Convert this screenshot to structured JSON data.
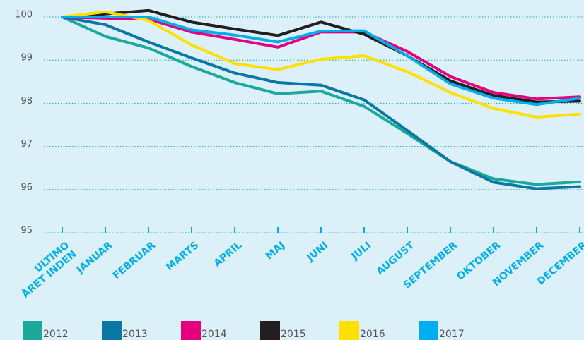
{
  "chart_data": {
    "type": "line",
    "categories": [
      "ULTIMO ÅRET INDEN",
      "JANUAR",
      "FEBRUAR",
      "MARTS",
      "APRIL",
      "MAJ",
      "JUNI",
      "JULI",
      "AUGUST",
      "SEPTEMBER",
      "OKTOBER",
      "NOVEMBER",
      "DECEMBER"
    ],
    "series": [
      {
        "name": "2012",
        "color": "#1aa99a",
        "values": [
          100,
          99.55,
          99.28,
          98.85,
          98.48,
          98.22,
          98.28,
          97.93,
          97.3,
          96.65,
          96.25,
          96.12,
          96.18
        ]
      },
      {
        "name": "2013",
        "color": "#0a77a4",
        "values": [
          100,
          99.82,
          99.42,
          99.05,
          98.7,
          98.48,
          98.42,
          98.08,
          97.37,
          96.65,
          96.17,
          96.02,
          96.07
        ]
      },
      {
        "name": "2014",
        "color": "#e5007e",
        "values": [
          100,
          99.97,
          99.95,
          99.65,
          99.48,
          99.3,
          99.65,
          99.65,
          99.2,
          98.62,
          98.25,
          98.1,
          98.15
        ]
      },
      {
        "name": "2015",
        "color": "#231f20",
        "values": [
          100,
          100.07,
          100.15,
          99.88,
          99.72,
          99.57,
          99.88,
          99.6,
          99.1,
          98.52,
          98.18,
          98.03,
          98.05
        ]
      },
      {
        "name": "2016",
        "color": "#ffe000",
        "values": [
          100,
          100.12,
          99.92,
          99.35,
          98.92,
          98.78,
          99.02,
          99.1,
          98.73,
          98.25,
          97.88,
          97.68,
          97.75
        ]
      },
      {
        "name": "2017",
        "color": "#00aeef",
        "values": [
          100,
          100.0,
          100.0,
          99.7,
          99.58,
          99.42,
          99.67,
          99.68,
          99.1,
          98.45,
          98.12,
          97.97,
          98.12
        ]
      }
    ],
    "ylim": [
      95,
      100
    ],
    "yticks": [
      95,
      96,
      97,
      98,
      99,
      100
    ],
    "grid": true
  }
}
